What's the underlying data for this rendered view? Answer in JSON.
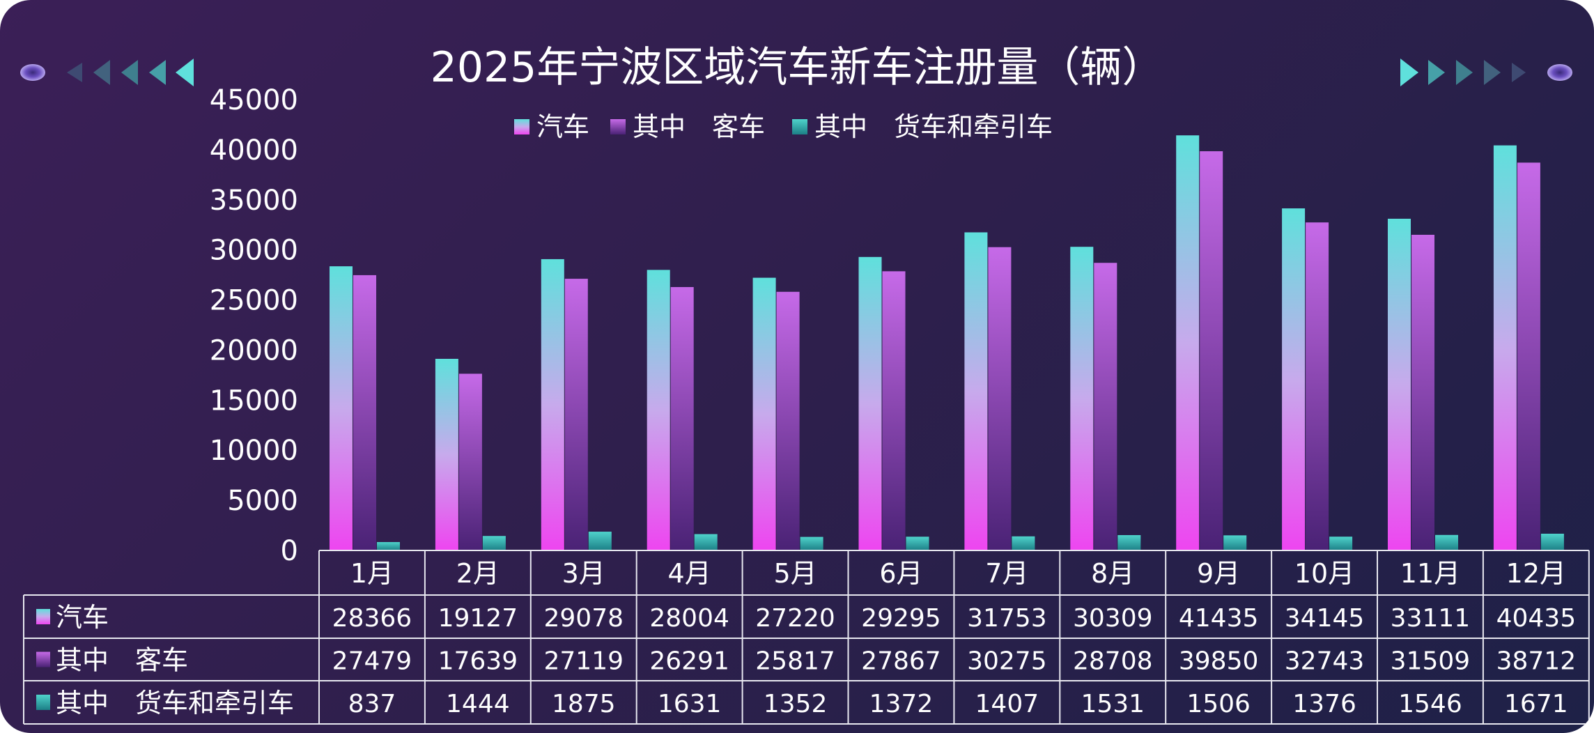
{
  "chart_data": {
    "type": "bar",
    "title": "2025年宁波区域汽车新车注册量（辆）",
    "categories": [
      "1月",
      "2月",
      "3月",
      "4月",
      "5月",
      "6月",
      "7月",
      "8月",
      "9月",
      "10月",
      "11月",
      "12月"
    ],
    "series": [
      {
        "name": "汽车",
        "values": [
          28366,
          19127,
          29078,
          28004,
          27220,
          29295,
          31753,
          30309,
          41435,
          34145,
          33111,
          40435
        ]
      },
      {
        "name": "其中　客车",
        "values": [
          27479,
          17639,
          27119,
          26291,
          25817,
          27867,
          30275,
          28708,
          39850,
          32743,
          31509,
          38712
        ]
      },
      {
        "name": "其中　货车和牵引车",
        "values": [
          837,
          1444,
          1875,
          1631,
          1352,
          1372,
          1407,
          1531,
          1506,
          1376,
          1546,
          1671
        ]
      }
    ],
    "ylim": [
      0,
      45000
    ],
    "yticks": [
      0,
      5000,
      10000,
      15000,
      20000,
      25000,
      30000,
      35000,
      40000,
      45000
    ],
    "legend_position": "top",
    "data_table": true,
    "grid": false
  },
  "colors": {
    "background_start": "#3b1f57",
    "background_end": "#1e2147",
    "series1_top": "#5fe0dc",
    "series1_bottom": "#ee45f0",
    "series2_top": "#c66ae8",
    "series2_bottom": "#4a2275",
    "series3_top": "#4fd3cb",
    "series3_bottom": "#1c7f86",
    "text": "#ffffff",
    "table_border": "#e8e8f0"
  }
}
